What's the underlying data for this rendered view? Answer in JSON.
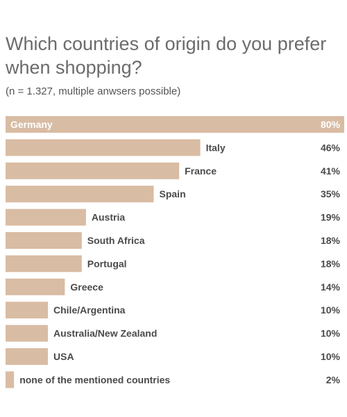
{
  "chart_data": {
    "type": "bar",
    "orientation": "horizontal",
    "title": "Which countries of origin do you prefer when shopping?",
    "subtitle": "(n = 1.327, multiple anwsers possible)",
    "unit": "%",
    "xlim": [
      0,
      80
    ],
    "grid": false,
    "legend": "none",
    "bar_color": "#d9bca4",
    "categories": [
      "Germany",
      "Italy",
      "France",
      "Spain",
      "Austria",
      "South Africa",
      "Portugal",
      "Greece",
      "Chile/Argentina",
      "Australia/New Zealand",
      "USA",
      "none of the mentioned countries"
    ],
    "values": [
      80,
      46,
      41,
      35,
      19,
      18,
      18,
      14,
      10,
      10,
      10,
      2
    ],
    "value_labels": [
      "80%",
      "46%",
      "41%",
      "35%",
      "19%",
      "18%",
      "18%",
      "14%",
      "10%",
      "10%",
      "10%",
      "2%"
    ]
  }
}
